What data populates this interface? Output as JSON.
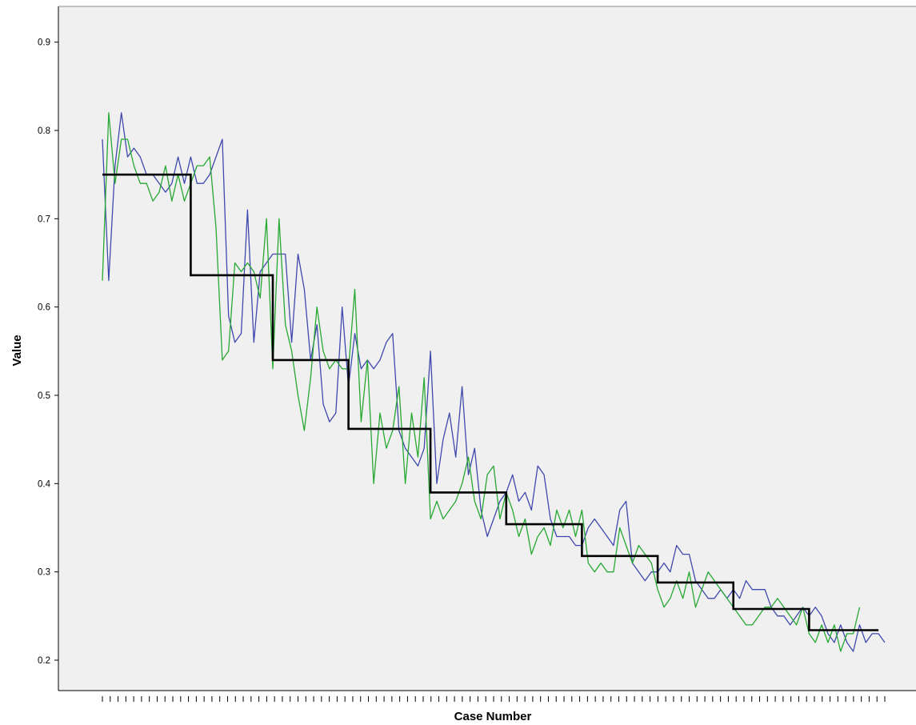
{
  "chart_data": {
    "type": "line",
    "title": "",
    "xlabel": "Case Number",
    "ylabel": "Value",
    "ylim": [
      0.16,
      0.97
    ],
    "y_ticks": [
      "0.2",
      "0.3",
      "0.4",
      "0.5",
      "0.6",
      "0.7",
      "0.8",
      "0.9"
    ],
    "x_tick_count": 101,
    "x_tick_labels_shown": false,
    "grid": false,
    "legend": "none",
    "colors": {
      "plot_background": "#f0f0f0",
      "series_blue": "#3f48ad",
      "series_green": "#27a832",
      "series_step": "#000000"
    },
    "series": [
      {
        "color": "blue",
        "values": [
          0.79,
          0.63,
          0.76,
          0.82,
          0.77,
          0.78,
          0.77,
          0.75,
          0.75,
          0.74,
          0.73,
          0.74,
          0.77,
          0.74,
          0.77,
          0.74,
          0.74,
          0.75,
          0.77,
          0.79,
          0.59,
          0.56,
          0.57,
          0.71,
          0.56,
          0.64,
          0.65,
          0.66,
          0.66,
          0.66,
          0.56,
          0.66,
          0.62,
          0.54,
          0.58,
          0.49,
          0.47,
          0.48,
          0.6,
          0.51,
          0.57,
          0.53,
          0.54,
          0.53,
          0.54,
          0.56,
          0.57,
          0.46,
          0.44,
          0.43,
          0.42,
          0.44,
          0.55,
          0.4,
          0.45,
          0.48,
          0.43,
          0.51,
          0.41,
          0.44,
          0.37,
          0.34,
          0.36,
          0.38,
          0.39,
          0.41,
          0.38,
          0.39,
          0.37,
          0.42,
          0.41,
          0.36,
          0.34,
          0.34,
          0.34,
          0.33,
          0.33,
          0.35,
          0.36,
          0.35,
          0.34,
          0.33,
          0.37,
          0.38,
          0.31,
          0.3,
          0.29,
          0.3,
          0.3,
          0.31,
          0.3,
          0.33,
          0.32,
          0.32,
          0.29,
          0.28,
          0.27,
          0.27,
          0.28,
          0.27,
          0.28,
          0.27,
          0.29,
          0.28,
          0.28,
          0.28,
          0.26,
          0.25,
          0.25,
          0.24,
          0.25,
          0.26,
          0.25,
          0.26,
          0.25,
          0.23,
          0.22,
          0.24,
          0.22,
          0.21,
          0.24,
          0.22,
          0.23,
          0.23,
          0.22
        ],
        "x_range": [
          1,
          125
        ]
      },
      {
        "color": "green",
        "values": [
          0.63,
          0.82,
          0.74,
          0.79,
          0.79,
          0.76,
          0.74,
          0.74,
          0.72,
          0.73,
          0.76,
          0.72,
          0.75,
          0.72,
          0.74,
          0.76,
          0.76,
          0.77,
          0.69,
          0.54,
          0.55,
          0.65,
          0.64,
          0.65,
          0.64,
          0.61,
          0.7,
          0.53,
          0.7,
          0.58,
          0.55,
          0.5,
          0.46,
          0.52,
          0.6,
          0.55,
          0.53,
          0.54,
          0.53,
          0.53,
          0.62,
          0.47,
          0.54,
          0.4,
          0.48,
          0.44,
          0.46,
          0.51,
          0.4,
          0.48,
          0.43,
          0.52,
          0.36,
          0.38,
          0.36,
          0.37,
          0.38,
          0.4,
          0.43,
          0.38,
          0.36,
          0.41,
          0.42,
          0.36,
          0.39,
          0.37,
          0.34,
          0.36,
          0.32,
          0.34,
          0.35,
          0.33,
          0.37,
          0.35,
          0.37,
          0.34,
          0.37,
          0.31,
          0.3,
          0.31,
          0.3,
          0.3,
          0.35,
          0.33,
          0.31,
          0.33,
          0.32,
          0.31,
          0.28,
          0.26,
          0.27,
          0.29,
          0.27,
          0.3,
          0.26,
          0.28,
          0.3,
          0.29,
          0.28,
          0.27,
          0.26,
          0.25,
          0.24,
          0.24,
          0.25,
          0.26,
          0.26,
          0.27,
          0.26,
          0.25,
          0.24,
          0.26,
          0.23,
          0.22,
          0.24,
          0.22,
          0.24,
          0.21,
          0.23,
          0.23,
          0.26
        ],
        "x_range": [
          1,
          121
        ]
      },
      {
        "color": "black",
        "kind": "step",
        "segments": [
          {
            "x": [
              1,
              15
            ],
            "value": 0.75
          },
          {
            "x": [
              15,
              28
            ],
            "value": 0.636
          },
          {
            "x": [
              28,
              40
            ],
            "value": 0.54
          },
          {
            "x": [
              40,
              53
            ],
            "value": 0.462
          },
          {
            "x": [
              53,
              65
            ],
            "value": 0.39
          },
          {
            "x": [
              65,
              77
            ],
            "value": 0.354
          },
          {
            "x": [
              77,
              89
            ],
            "value": 0.318
          },
          {
            "x": [
              89,
              101
            ],
            "value": 0.288
          },
          {
            "x": [
              101,
              113
            ],
            "value": 0.258
          },
          {
            "x": [
              113,
              124
            ],
            "value": 0.234
          }
        ]
      }
    ]
  }
}
